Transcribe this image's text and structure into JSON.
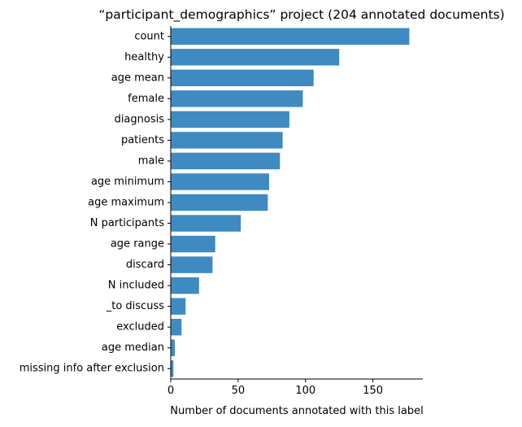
{
  "chart_data": {
    "type": "bar",
    "orientation": "horizontal",
    "title": "“participant_demographics” project (204 annotated documents)",
    "xlabel": "Number of documents annotated with this label",
    "ylabel": "",
    "categories": [
      "count",
      "healthy",
      "age mean",
      "female",
      "diagnosis",
      "patients",
      "male",
      "age minimum",
      "age maximum",
      "N participants",
      "age range",
      "discard",
      "N included",
      "_to discuss",
      "excluded",
      "age median",
      "missing info after exclusion"
    ],
    "values": [
      177,
      125,
      106,
      98,
      88,
      83,
      81,
      73,
      72,
      52,
      33,
      31,
      21,
      11,
      8,
      3,
      2
    ],
    "xlim": [
      0,
      187
    ],
    "xticks": [
      0,
      50,
      100,
      150
    ],
    "xtick_labels": [
      "0",
      "50",
      "100",
      "150"
    ],
    "bar_color": "#3f8bc1",
    "grid": false,
    "legend": "none"
  }
}
